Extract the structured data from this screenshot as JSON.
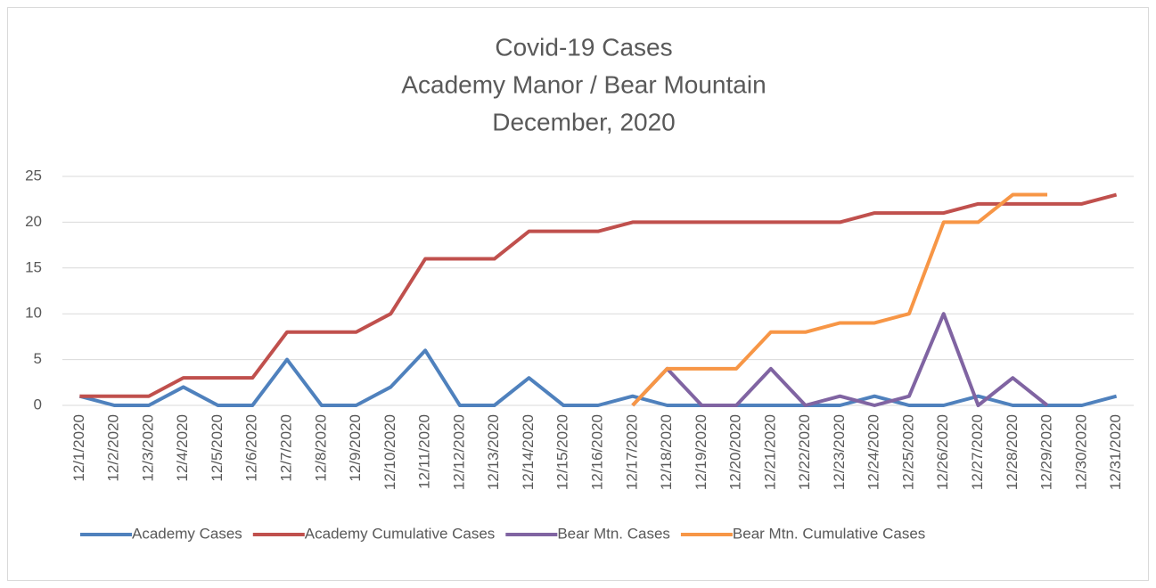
{
  "chart_data": {
    "type": "line",
    "title": [
      "Covid-19 Cases",
      "Academy Manor / Bear Mountain",
      "December, 2020"
    ],
    "categories": [
      "12/1/2020",
      "12/2/2020",
      "12/3/2020",
      "12/4/2020",
      "12/5/2020",
      "12/6/2020",
      "12/7/2020",
      "12/8/2020",
      "12/9/2020",
      "12/10/2020",
      "12/11/2020",
      "12/12/2020",
      "12/13/2020",
      "12/14/2020",
      "12/15/2020",
      "12/16/2020",
      "12/17/2020",
      "12/18/2020",
      "12/19/2020",
      "12/20/2020",
      "12/21/2020",
      "12/22/2020",
      "12/23/2020",
      "12/24/2020",
      "12/25/2020",
      "12/26/2020",
      "12/27/2020",
      "12/28/2020",
      "12/29/2020",
      "12/30/2020",
      "12/31/2020"
    ],
    "series": [
      {
        "name": "Academy Cases",
        "color": "#4f81bd",
        "values": [
          1,
          0,
          0,
          2,
          0,
          0,
          5,
          0,
          0,
          2,
          6,
          0,
          0,
          3,
          0,
          0,
          1,
          0,
          0,
          0,
          0,
          0,
          0,
          1,
          0,
          0,
          1,
          0,
          0,
          0,
          1
        ]
      },
      {
        "name": "Academy Cumulative Cases",
        "color": "#c0504d",
        "values": [
          1,
          1,
          1,
          3,
          3,
          3,
          8,
          8,
          8,
          10,
          16,
          16,
          16,
          19,
          19,
          19,
          20,
          20,
          20,
          20,
          20,
          20,
          20,
          21,
          21,
          21,
          22,
          22,
          22,
          22,
          23
        ]
      },
      {
        "name": "Bear Mtn. Cases",
        "color": "#8064a2",
        "values": [
          null,
          null,
          null,
          null,
          null,
          null,
          null,
          null,
          null,
          null,
          null,
          null,
          null,
          null,
          null,
          null,
          0,
          4,
          0,
          0,
          4,
          0,
          1,
          0,
          1,
          10,
          0,
          3,
          0,
          null,
          null
        ]
      },
      {
        "name": "Bear Mtn. Cumulative Cases",
        "color": "#f79646",
        "values": [
          null,
          null,
          null,
          null,
          null,
          null,
          null,
          null,
          null,
          null,
          null,
          null,
          null,
          null,
          null,
          null,
          0,
          4,
          4,
          4,
          8,
          8,
          9,
          9,
          10,
          20,
          20,
          23,
          23,
          null,
          null
        ]
      }
    ],
    "ylim": [
      0,
      25
    ],
    "yticks": [
      0,
      5,
      10,
      15,
      20,
      25
    ],
    "grid": true,
    "legend": "bottom"
  }
}
